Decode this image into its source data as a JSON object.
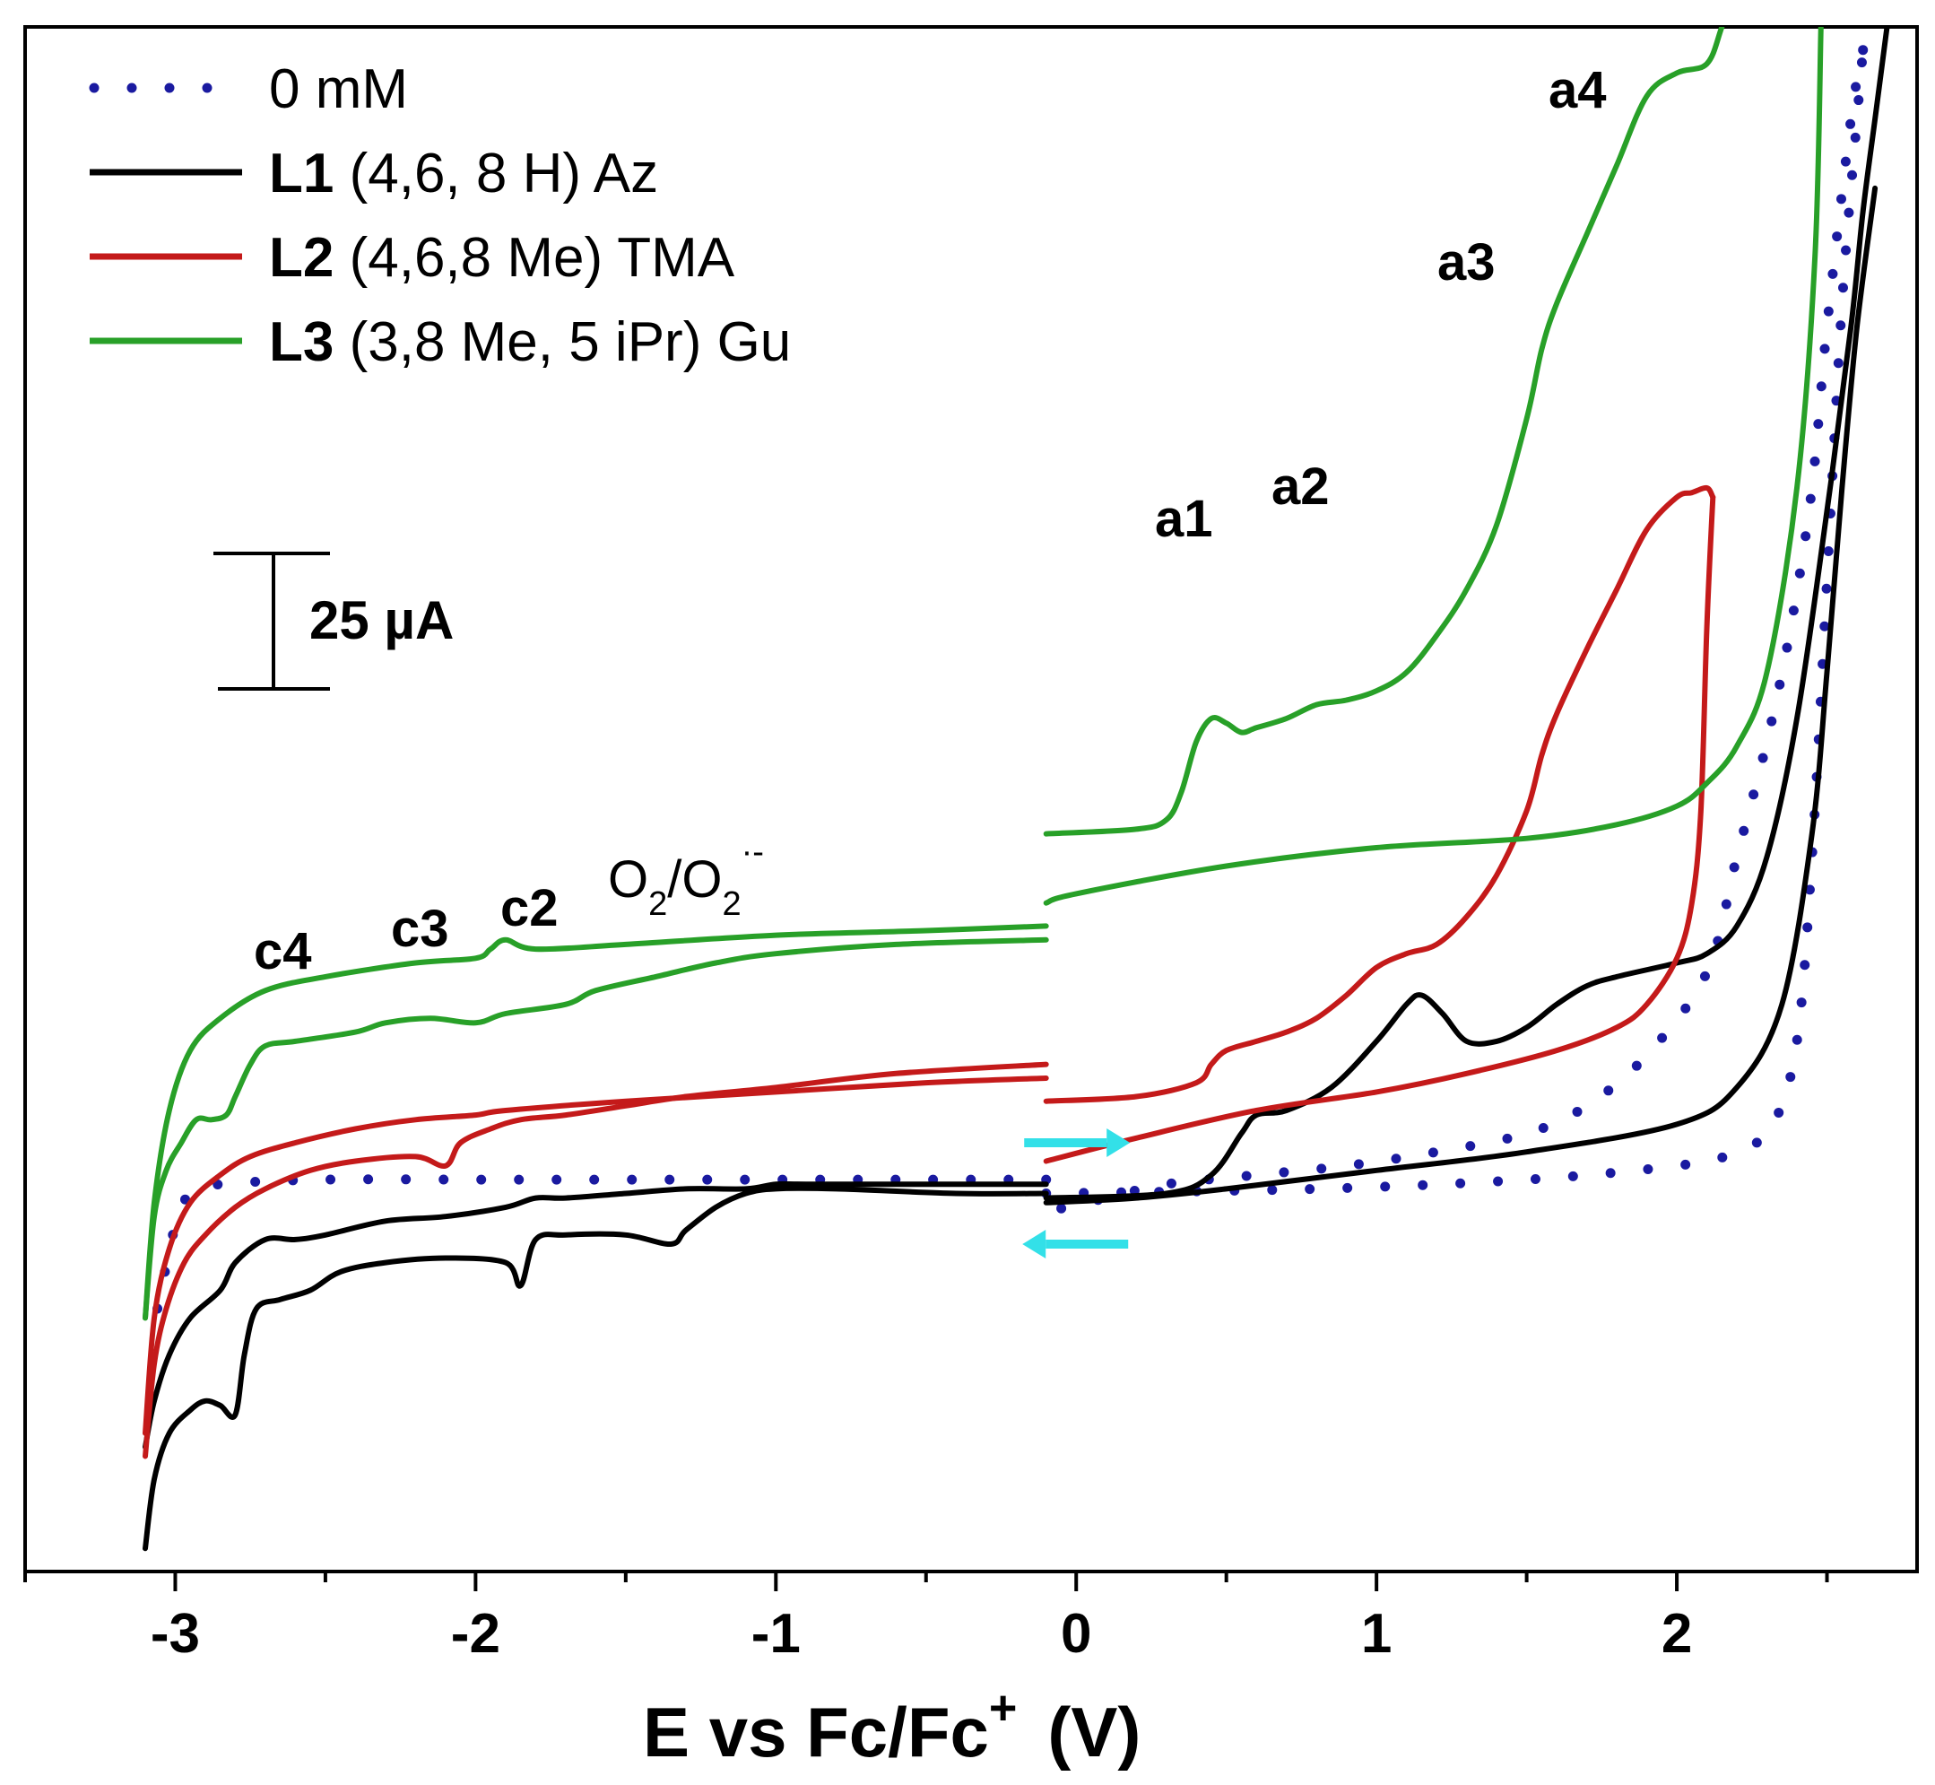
{
  "chart_data": {
    "type": "line",
    "title": "",
    "xlabel": "E vs Fc/Fc",
    "xlabel_sup": "+",
    "xlabel_unit": "(V)",
    "ylabel": "",
    "xlim": [
      -3.5,
      2.8
    ],
    "ylim": [
      -85,
      250
    ],
    "x_ticks": [
      -3,
      -2,
      -1,
      0,
      1,
      2
    ],
    "x_tick_labels": [
      "-3",
      "-2",
      "-1",
      "0",
      "1",
      "2"
    ],
    "grid": false,
    "legend_position": "top-left",
    "scale_bar": {
      "label": "25 µA",
      "value_uA": 25
    },
    "series": [
      {
        "id": "blank",
        "name": "0 mM",
        "color": "#1a1aa0",
        "style": "dotted",
        "legend": {
          "bold": "",
          "text": "0 mM"
        },
        "segments": [
          {
            "x": [
              -0.1,
              0.8,
              1.5,
              2.0,
              2.2,
              2.32,
              2.4,
              2.45,
              2.5,
              2.55,
              2.6,
              2.62
            ],
            "y": [
              -3,
              -2,
              0,
              3,
              6,
              12,
              30,
              70,
              130,
              190,
              230,
              245
            ]
          },
          {
            "x": [
              2.62,
              2.58,
              2.5,
              2.45,
              2.38,
              2.3,
              2.2,
              2.1,
              1.9,
              1.7,
              1.5,
              1.2,
              0.9,
              0.6,
              0.3,
              0.1,
              -0.1
            ],
            "y": [
              245,
              230,
              185,
              150,
              120,
              95,
              70,
              45,
              27,
              16,
              10,
              6,
              3,
              1,
              -1,
              -4,
              -7
            ]
          },
          {
            "x": [
              -0.1,
              -0.5,
              -1.0,
              -1.5,
              -2.0,
              -2.5,
              -2.85,
              -2.95,
              -3.0,
              -3.05,
              -3.08
            ],
            "y": [
              0,
              0,
              0,
              0,
              0,
              0,
              -1,
              -3,
              -10,
              -25,
              -35
            ]
          }
        ]
      },
      {
        "id": "L1",
        "name": "L1 (4,6, 8 H) Az",
        "color": "#000000",
        "style": "solid",
        "legend": {
          "bold": "L1",
          "text": " (4,6, 8 H) Az"
        },
        "segments": [
          {
            "x": [
              -0.1,
              0.3,
              0.45,
              0.55,
              0.6,
              0.7,
              0.85,
              1.0,
              1.1,
              1.15,
              1.22,
              1.3,
              1.4,
              1.5,
              1.6,
              1.7,
              1.8,
              2.0,
              2.1,
              2.2,
              2.3,
              2.4,
              2.5,
              2.58,
              2.62,
              2.66,
              2.7
            ],
            "y": [
              -4,
              -3,
              1,
              10,
              14,
              15,
              20,
              30,
              38,
              40,
              36,
              30,
              30,
              33,
              38,
              42,
              44,
              47,
              49,
              55,
              70,
              100,
              145,
              185,
              210,
              230,
              250
            ]
          },
          {
            "x": [
              2.66,
              2.6,
              2.55,
              2.5,
              2.45,
              2.35,
              2.2,
              2.0,
              1.5,
              1.0,
              0.5,
              0.2,
              -0.1
            ],
            "y": [
              215,
              185,
              150,
              110,
              75,
              38,
              20,
              12,
              6,
              2,
              -2,
              -4,
              -5
            ]
          },
          {
            "x": [
              -0.1,
              -0.3,
              -0.6,
              -0.9,
              -1.0,
              -1.1,
              -1.3,
              -1.5,
              -1.7,
              -1.8,
              -1.9,
              -2.1,
              -2.3,
              -2.5,
              -2.6,
              -2.7,
              -2.8,
              -2.85,
              -2.95,
              -3.02,
              -3.07,
              -3.1
            ],
            "y": [
              -1,
              -1,
              -1,
              -1,
              -1,
              -2,
              -2,
              -3,
              -4,
              -4,
              -6,
              -8,
              -9,
              -12,
              -13,
              -13,
              -18,
              -24,
              -30,
              -38,
              -48,
              -58
            ]
          },
          {
            "x": [
              -3.1,
              -3.07,
              -3.02,
              -2.95,
              -2.9,
              -2.85,
              -2.8,
              -2.77,
              -2.73,
              -2.65,
              -2.55,
              -2.45,
              -2.3,
              -2.1,
              -1.9,
              -1.85,
              -1.8,
              -1.7,
              -1.5,
              -1.35,
              -1.3,
              -1.2,
              -1.1,
              -1.0,
              -0.8,
              -0.4,
              -0.1
            ],
            "y": [
              -80,
              -65,
              -55,
              -50,
              -48,
              -49,
              -51,
              -38,
              -28,
              -26,
              -24,
              -20,
              -18,
              -17,
              -18,
              -23,
              -13,
              -12,
              -12,
              -14,
              -11,
              -6,
              -3,
              -2,
              -2,
              -3,
              -3
            ]
          }
        ]
      },
      {
        "id": "L2",
        "name": "L2 (4,6,8 Me) TMA",
        "color": "#c41a1a",
        "style": "solid",
        "legend": {
          "bold": "L2",
          "text": " (4,6,8 Me) TMA"
        },
        "segments": [
          {
            "x": [
              -0.1,
              0.2,
              0.4,
              0.45,
              0.5,
              0.6,
              0.7,
              0.8,
              0.9,
              1.0,
              1.1,
              1.2,
              1.3,
              1.4,
              1.5,
              1.55,
              1.6,
              1.7,
              1.8,
              1.9,
              2.0,
              2.05,
              2.1,
              2.12
            ],
            "y": [
              17,
              18,
              21,
              25,
              28,
              30,
              32,
              35,
              40,
              46,
              49,
              51,
              57,
              66,
              80,
              92,
              101,
              115,
              128,
              141,
              148,
              149,
              150,
              148
            ]
          },
          {
            "x": [
              2.12,
              2.1,
              2.08,
              2.05,
              2.0,
              1.9,
              1.8,
              1.6,
              1.3,
              1.0,
              0.6,
              0.2,
              -0.1
            ],
            "y": [
              148,
              120,
              80,
              60,
              48,
              38,
              33,
              28,
              23,
              19,
              15,
              9,
              4
            ]
          },
          {
            "x": [
              -0.1,
              -0.5,
              -1.0,
              -1.5,
              -1.9,
              -2.0,
              -2.2,
              -2.4,
              -2.6,
              -2.75,
              -2.85,
              -2.95,
              -3.02,
              -3.07,
              -3.1
            ],
            "y": [
              22,
              21,
              19,
              17,
              15,
              14,
              13,
              11,
              8,
              5,
              1,
              -5,
              -15,
              -30,
              -55
            ]
          },
          {
            "x": [
              -3.1,
              -3.07,
              -3.03,
              -2.97,
              -2.9,
              -2.8,
              -2.7,
              -2.55,
              -2.4,
              -2.2,
              -2.1,
              -2.05,
              -1.95,
              -1.85,
              -1.7,
              -1.5,
              -1.3,
              -1.0,
              -0.6,
              -0.1
            ],
            "y": [
              -60,
              -40,
              -28,
              -18,
              -12,
              -6,
              -2,
              2,
              4,
              5,
              3,
              8,
              11,
              13,
              14,
              16,
              18,
              20,
              23,
              25
            ]
          }
        ]
      },
      {
        "id": "L3",
        "name": "L3 (3,8 Me, 5 iPr) Gu",
        "color": "#28a028",
        "style": "solid",
        "legend": {
          "bold": "L3",
          "text": " (3,8 Me, 5 iPr) Gu"
        },
        "segments": [
          {
            "x": [
              -0.1,
              0.2,
              0.3,
              0.35,
              0.4,
              0.45,
              0.5,
              0.55,
              0.6,
              0.7,
              0.8,
              0.9,
              1.0,
              1.1,
              1.2,
              1.3,
              1.4,
              1.5,
              1.55,
              1.6,
              1.7,
              1.8,
              1.9,
              2.0,
              2.1,
              2.15,
              2.2
            ],
            "y": [
              75,
              76,
              78,
              84,
              95,
              100,
              99,
              97,
              98,
              100,
              103,
              104,
              106,
              110,
              118,
              128,
              142,
              165,
              180,
              190,
              205,
              220,
              235,
              240,
              242,
              250,
              260
            ]
          },
          {
            "x": [
              2.48,
              2.46,
              2.4,
              2.3,
              2.2,
              2.1,
              2.0,
              1.8,
              1.5,
              1.0,
              0.5,
              0.0,
              -0.1
            ],
            "y": [
              250,
              200,
              150,
              110,
              94,
              86,
              81,
              77,
              74,
              72,
              68,
              62,
              60
            ]
          },
          {
            "x": [
              -0.1,
              -0.5,
              -1.0,
              -1.5,
              -1.8,
              -1.9,
              -1.95,
              -2.0,
              -2.2,
              -2.5,
              -2.7,
              -2.85,
              -2.95,
              -3.02,
              -3.07,
              -3.1
            ],
            "y": [
              55,
              54,
              53,
              51,
              50,
              52,
              50,
              48,
              47,
              44,
              41,
              35,
              28,
              15,
              -5,
              -30
            ]
          },
          {
            "x": [
              -3.1,
              -3.07,
              -3.03,
              -2.98,
              -2.93,
              -2.88,
              -2.83,
              -2.8,
              -2.75,
              -2.7,
              -2.6,
              -2.4,
              -2.3,
              -2.15,
              -2.0,
              -1.9,
              -1.7,
              -1.6,
              -1.4,
              -1.2,
              -1.0,
              -0.6,
              -0.1
            ],
            "y": [
              -30,
              -8,
              2,
              8,
              13,
              13,
              14,
              18,
              25,
              29,
              30,
              32,
              34,
              35,
              34,
              36,
              38,
              41,
              44,
              47,
              49,
              51,
              52
            ]
          }
        ]
      }
    ],
    "annotations": {
      "anodic": [
        {
          "text": "a1",
          "x": 0.38,
          "y": 113
        },
        {
          "text": "a2",
          "x": 0.78,
          "y": 119
        },
        {
          "text": "a3",
          "x": 1.32,
          "y": 195
        },
        {
          "text": "a4",
          "x": 1.68,
          "y": 237
        }
      ],
      "cathodic": [
        {
          "text": "c4",
          "x": -2.68,
          "y": 16
        },
        {
          "text": "c3",
          "x": -2.18,
          "y": 21
        },
        {
          "text": "c2",
          "x": -1.83,
          "y": 24
        },
        {
          "text": "O",
          "sub": "2",
          "sep": "/O",
          "sub2": "2",
          "sup": "·-",
          "x": -1.58,
          "y": 26
        }
      ]
    },
    "scan_arrows": [
      {
        "direction": "right",
        "color": "#33e0e8",
        "x": 0.0,
        "y": 8
      },
      {
        "direction": "left",
        "color": "#33e0e8",
        "x": 0.0,
        "y": -14
      }
    ]
  }
}
